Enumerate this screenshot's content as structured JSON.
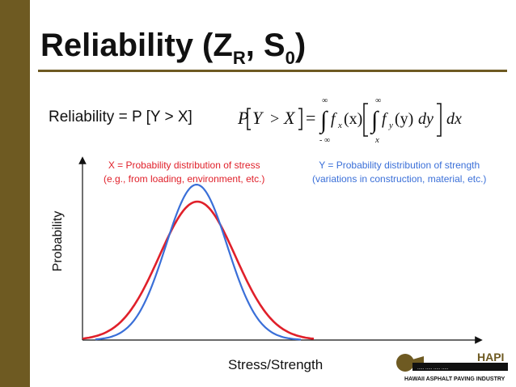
{
  "slide": {
    "title_main": "Reliability (Z",
    "title_sub_r": "R",
    "title_sep": ", S",
    "title_sub_0": "0",
    "title_close": ")",
    "reliability_text": "Reliability = P [Y > X]"
  },
  "formula": {
    "P": "P",
    "Y": "Y",
    "gt": ">",
    "X": "X",
    "eq": "=",
    "inf_top1": "∞",
    "inf_bottom1": "- ∞",
    "inf_top2": "∞",
    "lower2": "x",
    "int": "∫",
    "fx": "f",
    "fx_sub": "x",
    "x1": "(x)",
    "fy": "f",
    "fy_sub": "y",
    "y1": "(y)",
    "dy": "dy",
    "dx": "dx"
  },
  "notes": {
    "x_line1": "X = Probability distribution of stress",
    "x_line2": "(e.g., from loading, environment, etc.)",
    "y_line1": "Y = Probability distribution of strength",
    "y_line2": "(variations in construction, material, etc.)"
  },
  "axes": {
    "ylabel": "Probability",
    "xlabel": "Stress/Strength"
  },
  "colors": {
    "sidebar": "#6e5a22",
    "stress_curve": "#e0202a",
    "strength_curve": "#3a6fd8"
  },
  "logo": {
    "text": "HAPI",
    "subtitle": "HAWAII ASPHALT PAVING INDUSTRY"
  }
}
